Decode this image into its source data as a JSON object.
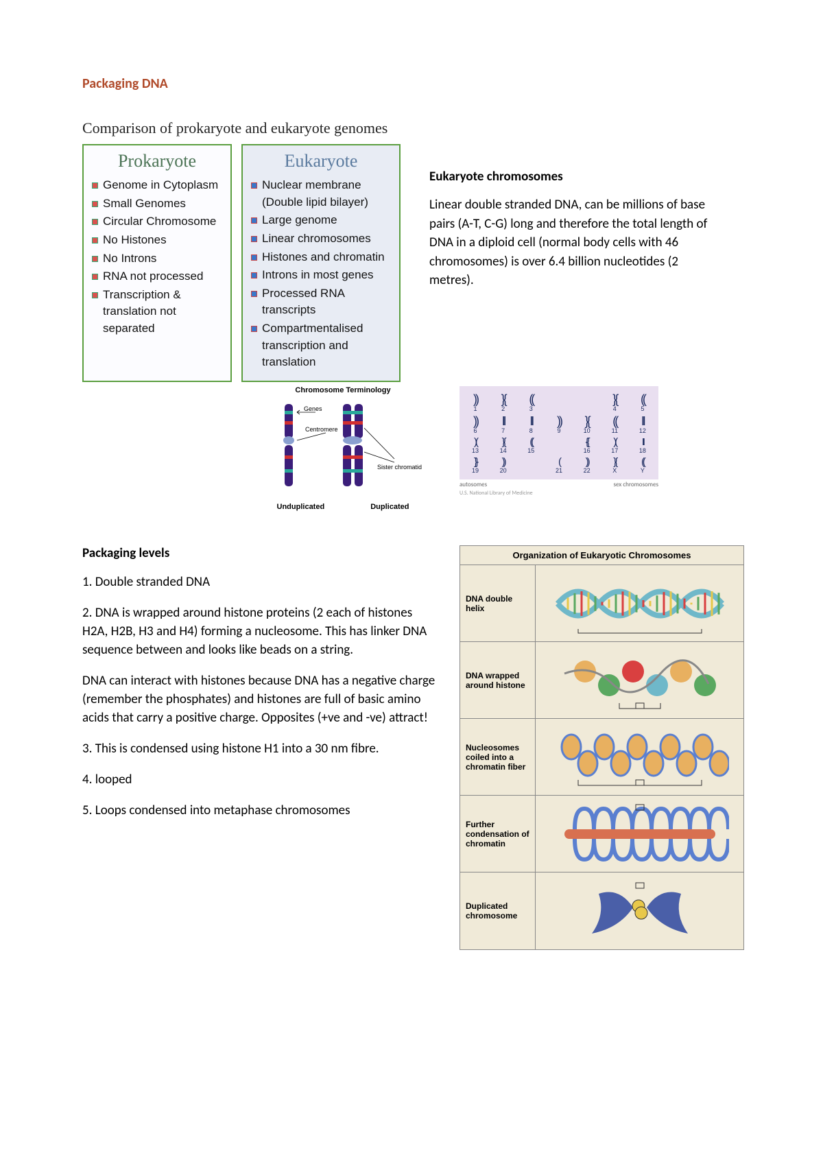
{
  "title": {
    "text": "Packaging DNA",
    "color": "#b04a2a"
  },
  "comparison": {
    "heading": "Comparison of prokaryote and eukaryote genomes",
    "prokaryote": {
      "header": "Prokaryote",
      "items": [
        "Genome in Cytoplasm",
        "Small Genomes",
        "Circular Chromosome",
        "No Histones",
        "No Introns",
        "RNA not processed",
        "Transcription & translation not separated"
      ]
    },
    "eukaryote": {
      "header": "Eukaryote",
      "items": [
        "Nuclear membrane (Double lipid bilayer)",
        "Large genome",
        "Linear chromosomes",
        "Histones and chromatin",
        "Introns in most genes",
        "Processed RNA transcripts",
        "Compartmentalised transcription and translation"
      ]
    }
  },
  "euk_chrom": {
    "heading": "Eukaryote chromosomes",
    "body": "Linear double stranded DNA, can be millions of base pairs (A-T, C-G) long and therefore the total length of DNA in a diploid cell (normal body cells with 46 chromosomes) is over 6.4 billion nucleotides (2 metres)."
  },
  "chrom_term": {
    "title": "Chromosome Terminology",
    "labels": {
      "undup": "Unduplicated",
      "dup": "Duplicated",
      "genes": "Genes",
      "centromere": "Centromere",
      "sister": "Sister chromatid"
    },
    "colors": {
      "chromatid": "#3b1e7a",
      "band_red": "#d23030",
      "band_teal": "#2aa89a",
      "centromere": "#8aa0d0"
    }
  },
  "karyotype": {
    "bg": "#e9dff0",
    "chrom_color": "#1a2a5e",
    "rows": [
      [
        {
          "n": "1"
        },
        {
          "n": "2"
        },
        {
          "n": "3"
        },
        {
          "n": ""
        },
        {
          "n": ""
        },
        {
          "n": "4"
        },
        {
          "n": "5"
        }
      ],
      [
        {
          "n": "6"
        },
        {
          "n": "7"
        },
        {
          "n": "8"
        },
        {
          "n": "9"
        },
        {
          "n": "10"
        },
        {
          "n": "11"
        },
        {
          "n": "12"
        }
      ],
      [
        {
          "n": "13"
        },
        {
          "n": "14"
        },
        {
          "n": "15"
        },
        {
          "n": ""
        },
        {
          "n": "16"
        },
        {
          "n": "17"
        },
        {
          "n": "18"
        }
      ],
      [
        {
          "n": "19"
        },
        {
          "n": "20"
        },
        {
          "n": ""
        },
        {
          "n": "21"
        },
        {
          "n": "22"
        },
        {
          "n": "X"
        },
        {
          "n": "Y"
        }
      ]
    ],
    "foot_left": "autosomes",
    "foot_right": "sex chromosomes",
    "source": "U.S. National Library of Medicine"
  },
  "packaging": {
    "heading": "Packaging levels",
    "paras": [
      "1. Double stranded DNA",
      "2. DNA is wrapped around histone proteins (2 each of histones H2A, H2B, H3 and H4) forming a nucleosome.  This has linker DNA sequence between and looks like beads on a string.",
      "DNA can interact with histones because DNA has a negative charge (remember the phosphates) and histones are full of basic amino acids that carry a positive charge.  Opposites (+ve and -ve) attract!",
      "3. This is condensed using histone H1 into a 30 nm fibre.",
      "4. looped",
      "5. Loops condensed into metaphase chromosomes"
    ]
  },
  "org_table": {
    "title": "Organization of Eukaryotic Chromosomes",
    "rows": [
      "DNA double helix",
      "DNA wrapped around histone",
      "Nucleosomes coiled into a chromatin fiber",
      "Further condensation of chromatin",
      "Duplicated chromosome"
    ],
    "colors": {
      "dna1": "#6fb8c9",
      "dna2": "#d94040",
      "dna3": "#e6c84a",
      "dna4": "#5aa860",
      "histone": "#e8b060",
      "fiber": "#5a7fd0",
      "condense": "#d87050",
      "chrom": "#4a5fa8",
      "centro": "#e8c84a"
    }
  }
}
